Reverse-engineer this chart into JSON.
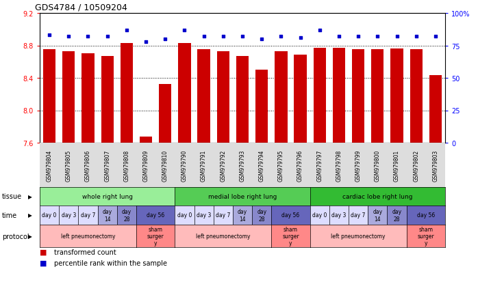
{
  "title": "GDS4784 / 10509204",
  "samples": [
    "GSM979804",
    "GSM979805",
    "GSM979806",
    "GSM979807",
    "GSM979808",
    "GSM979809",
    "GSM979810",
    "GSM979790",
    "GSM979791",
    "GSM979792",
    "GSM979793",
    "GSM979794",
    "GSM979795",
    "GSM979796",
    "GSM979797",
    "GSM979798",
    "GSM979799",
    "GSM979800",
    "GSM979801",
    "GSM979802",
    "GSM979803"
  ],
  "bar_values": [
    8.75,
    8.73,
    8.7,
    8.67,
    8.83,
    7.68,
    8.32,
    8.83,
    8.75,
    8.73,
    8.67,
    8.5,
    8.73,
    8.69,
    8.77,
    8.77,
    8.75,
    8.75,
    8.76,
    8.75,
    8.43
  ],
  "dot_values": [
    83,
    82,
    82,
    82,
    87,
    78,
    80,
    87,
    82,
    82,
    82,
    80,
    82,
    81,
    87,
    82,
    82,
    82,
    82,
    82,
    82
  ],
  "ymin": 7.6,
  "ymax": 9.2,
  "y2min": 0,
  "y2max": 100,
  "yticks": [
    7.6,
    8.0,
    8.4,
    8.8,
    9.2
  ],
  "y2ticks": [
    0,
    25,
    50,
    75,
    100
  ],
  "bar_color": "#CC0000",
  "dot_color": "#0000CC",
  "tissue_groups": [
    {
      "label": "whole right lung",
      "start": 0,
      "end": 7,
      "color": "#99EE99"
    },
    {
      "label": "medial lobe right lung",
      "start": 7,
      "end": 14,
      "color": "#55CC55"
    },
    {
      "label": "cardiac lobe right lung",
      "start": 14,
      "end": 21,
      "color": "#33BB33"
    }
  ],
  "time_groups": [
    {
      "label": "day 0",
      "start": 0,
      "end": 1,
      "color": "#DDDDFF"
    },
    {
      "label": "day 3",
      "start": 1,
      "end": 2,
      "color": "#DDDDFF"
    },
    {
      "label": "day 7",
      "start": 2,
      "end": 3,
      "color": "#DDDDFF"
    },
    {
      "label": "day\n14",
      "start": 3,
      "end": 4,
      "color": "#AAAADD"
    },
    {
      "label": "day\n28",
      "start": 4,
      "end": 5,
      "color": "#8888CC"
    },
    {
      "label": "day 56",
      "start": 5,
      "end": 7,
      "color": "#6666BB"
    },
    {
      "label": "day 0",
      "start": 7,
      "end": 8,
      "color": "#DDDDFF"
    },
    {
      "label": "day 3",
      "start": 8,
      "end": 9,
      "color": "#DDDDFF"
    },
    {
      "label": "day 7",
      "start": 9,
      "end": 10,
      "color": "#DDDDFF"
    },
    {
      "label": "day\n14",
      "start": 10,
      "end": 11,
      "color": "#AAAADD"
    },
    {
      "label": "day\n28",
      "start": 11,
      "end": 12,
      "color": "#8888CC"
    },
    {
      "label": "day 56",
      "start": 12,
      "end": 14,
      "color": "#6666BB"
    },
    {
      "label": "day 0",
      "start": 14,
      "end": 15,
      "color": "#DDDDFF"
    },
    {
      "label": "day 3",
      "start": 15,
      "end": 16,
      "color": "#DDDDFF"
    },
    {
      "label": "day 7",
      "start": 16,
      "end": 17,
      "color": "#DDDDFF"
    },
    {
      "label": "day\n14",
      "start": 17,
      "end": 18,
      "color": "#AAAADD"
    },
    {
      "label": "day\n28",
      "start": 18,
      "end": 19,
      "color": "#8888CC"
    },
    {
      "label": "day 56",
      "start": 19,
      "end": 21,
      "color": "#6666BB"
    }
  ],
  "protocol_groups": [
    {
      "label": "left pneumonectomy",
      "start": 0,
      "end": 5,
      "color": "#FFBBBB"
    },
    {
      "label": "sham\nsurger\ny",
      "start": 5,
      "end": 7,
      "color": "#FF8888"
    },
    {
      "label": "left pneumonectomy",
      "start": 7,
      "end": 12,
      "color": "#FFBBBB"
    },
    {
      "label": "sham\nsurger\ny",
      "start": 12,
      "end": 14,
      "color": "#FF8888"
    },
    {
      "label": "left pneumonectomy",
      "start": 14,
      "end": 19,
      "color": "#FFBBBB"
    },
    {
      "label": "sham\nsurger\ny",
      "start": 19,
      "end": 21,
      "color": "#FF8888"
    }
  ],
  "row_labels": [
    "tissue",
    "time",
    "protocol"
  ],
  "legend_bar_label": "transformed count",
  "legend_dot_label": "percentile rank within the sample"
}
